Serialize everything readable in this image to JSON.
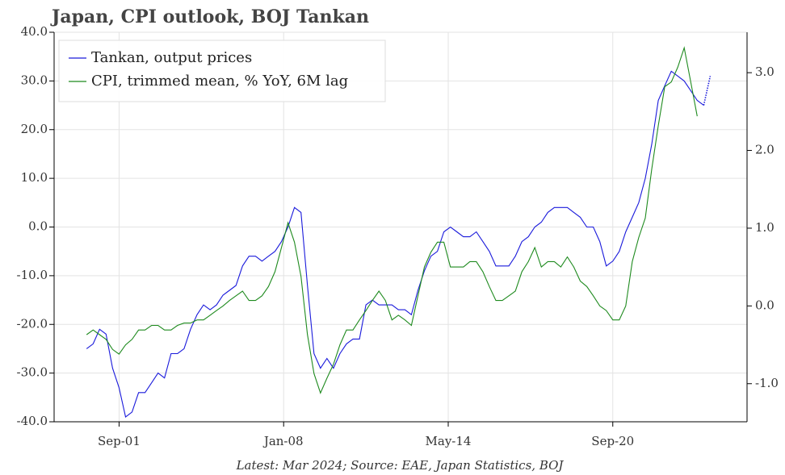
{
  "chart_data": {
    "type": "line",
    "title": "Japan, CPI outlook, BOJ Tankan",
    "footnote": "Latest: Mar 2024; Source: EAE, Japan Statistics, BOJ",
    "x": [
      "2000-06",
      "2000-09",
      "2000-12",
      "2001-03",
      "2001-06",
      "2001-09",
      "2001-12",
      "2002-03",
      "2002-06",
      "2002-09",
      "2002-12",
      "2003-03",
      "2003-06",
      "2003-09",
      "2003-12",
      "2004-03",
      "2004-06",
      "2004-09",
      "2004-12",
      "2005-03",
      "2005-06",
      "2005-09",
      "2005-12",
      "2006-03",
      "2006-06",
      "2006-09",
      "2006-12",
      "2007-03",
      "2007-06",
      "2007-09",
      "2007-12",
      "2008-03",
      "2008-06",
      "2008-09",
      "2008-12",
      "2009-03",
      "2009-06",
      "2009-09",
      "2009-12",
      "2010-03",
      "2010-06",
      "2010-09",
      "2010-12",
      "2011-03",
      "2011-06",
      "2011-09",
      "2011-12",
      "2012-03",
      "2012-06",
      "2012-09",
      "2012-12",
      "2013-03",
      "2013-06",
      "2013-09",
      "2013-12",
      "2014-03",
      "2014-06",
      "2014-09",
      "2014-12",
      "2015-03",
      "2015-06",
      "2015-09",
      "2015-12",
      "2016-03",
      "2016-06",
      "2016-09",
      "2016-12",
      "2017-03",
      "2017-06",
      "2017-09",
      "2017-12",
      "2018-03",
      "2018-06",
      "2018-09",
      "2018-12",
      "2019-03",
      "2019-06",
      "2019-09",
      "2019-12",
      "2020-03",
      "2020-06",
      "2020-09",
      "2020-12",
      "2021-03",
      "2021-06",
      "2021-09",
      "2021-12",
      "2022-03",
      "2022-06",
      "2022-09",
      "2022-12",
      "2023-03",
      "2023-06",
      "2023-09",
      "2023-12",
      "2024-03",
      "2024-06"
    ],
    "series": [
      {
        "name": "Tankan, output prices",
        "color": "#1a1adb",
        "forecast_from": 95,
        "values": [
          -25,
          -24,
          -21,
          -22,
          -29,
          -33,
          -39,
          -38,
          -34,
          -34,
          -32,
          -30,
          -31,
          -26,
          -26,
          -25,
          -21,
          -18,
          -16,
          -17,
          -16,
          -14,
          -13,
          -12,
          -8,
          -6,
          -6,
          -7,
          -6,
          -5,
          -3,
          0,
          4,
          3,
          -12,
          -26,
          -29,
          -27,
          -29,
          -26,
          -24,
          -23,
          -23,
          -16,
          -15,
          -16,
          -16,
          -16,
          -17,
          -17,
          -18,
          -13,
          -9,
          -6,
          -5,
          -1,
          0,
          -1,
          -2,
          -2,
          -1,
          -3,
          -5,
          -8,
          -8,
          -8,
          -6,
          -3,
          -2,
          0,
          1,
          3,
          4,
          4,
          4,
          3,
          2,
          0,
          0,
          -3,
          -8,
          -7,
          -5,
          -1,
          2,
          5,
          10,
          17,
          26,
          29,
          32,
          31,
          30,
          28,
          26,
          25,
          31
        ]
      },
      {
        "name": "CPI, trimmed mean, % YoY, 6M lag",
        "color": "#1e8a1e",
        "axis": "y2",
        "values": [
          -0.37,
          -0.31,
          -0.37,
          -0.43,
          -0.56,
          -0.62,
          -0.5,
          -0.43,
          -0.31,
          -0.31,
          -0.25,
          -0.25,
          -0.31,
          -0.31,
          -0.25,
          -0.22,
          -0.22,
          -0.18,
          -0.18,
          -0.12,
          -0.06,
          0.0,
          0.07,
          0.13,
          0.19,
          0.07,
          0.07,
          0.13,
          0.25,
          0.44,
          0.75,
          1.07,
          0.82,
          0.38,
          -0.37,
          -0.87,
          -1.12,
          -0.93,
          -0.75,
          -0.5,
          -0.31,
          -0.31,
          -0.18,
          -0.06,
          0.07,
          0.19,
          0.07,
          -0.18,
          -0.12,
          -0.18,
          -0.25,
          0.13,
          0.5,
          0.69,
          0.82,
          0.82,
          0.5,
          0.5,
          0.5,
          0.57,
          0.57,
          0.44,
          0.25,
          0.07,
          0.07,
          0.13,
          0.19,
          0.44,
          0.57,
          0.75,
          0.5,
          0.57,
          0.57,
          0.5,
          0.63,
          0.5,
          0.32,
          0.25,
          0.13,
          0.0,
          -0.06,
          -0.18,
          -0.18,
          0.0,
          0.57,
          0.88,
          1.13,
          1.76,
          2.32,
          2.82,
          2.88,
          3.07,
          3.32,
          2.88,
          2.44,
          null,
          null
        ]
      }
    ],
    "xlim": [
      "1999-03",
      "2025-11"
    ],
    "xticks": [
      {
        "value": "2001-09",
        "label": "Sep-01"
      },
      {
        "value": "2008-01",
        "label": "Jan-08"
      },
      {
        "value": "2014-05",
        "label": "May-14"
      },
      {
        "value": "2020-09",
        "label": "Sep-20"
      }
    ],
    "ylim": [
      -40,
      40
    ],
    "yticks": [
      {
        "value": -40,
        "label": "-40.0"
      },
      {
        "value": -30,
        "label": "-30.0"
      },
      {
        "value": -20,
        "label": "-20.0"
      },
      {
        "value": -10,
        "label": "-10.0"
      },
      {
        "value": 0,
        "label": "0.0"
      },
      {
        "value": 10,
        "label": "10.0"
      },
      {
        "value": 20,
        "label": "20.0"
      },
      {
        "value": 30,
        "label": "30.0"
      },
      {
        "value": 40,
        "label": "40.0"
      }
    ],
    "y2lim": [
      -1.49,
      3.52
    ],
    "y2ticks": [
      {
        "value": -1,
        "label": "-1.0"
      },
      {
        "value": 0,
        "label": "0.0"
      },
      {
        "value": 1,
        "label": "1.0"
      },
      {
        "value": 2,
        "label": "2.0"
      },
      {
        "value": 3,
        "label": "3.0"
      }
    ],
    "grid": true,
    "legend": "upper left"
  }
}
